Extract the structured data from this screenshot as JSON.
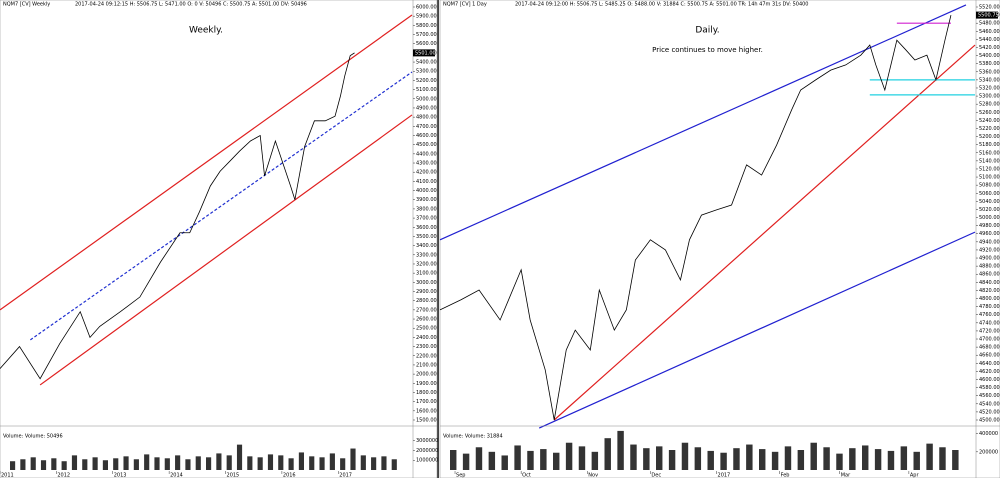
{
  "chart_data": [
    {
      "type": "line",
      "header": "NQM7 [CV]  Weekly",
      "header_info": "2017-04-24 09:12:15 H: 5506.75 L: 5471.00 O: 0 V: 50496 C: 5500.75 A: 5501.00 DV: 50496",
      "title": "Weekly.",
      "last_label": "5501.00",
      "color": "#000000",
      "x": [
        0,
        18,
        37,
        55,
        74,
        83,
        92,
        111,
        129,
        148,
        166,
        175,
        184,
        194,
        203,
        212,
        221,
        231,
        240,
        244,
        254,
        268,
        272,
        281,
        290,
        300,
        309,
        314,
        318,
        323,
        327
      ],
      "values": [
        2060,
        2300,
        1950,
        2330,
        2680,
        2400,
        2520,
        2680,
        2840,
        3220,
        3540,
        3540,
        3770,
        4050,
        4210,
        4320,
        4430,
        4540,
        4600,
        4160,
        4540,
        4050,
        3900,
        4480,
        4760,
        4760,
        4810,
        5030,
        5250,
        5470,
        5500
      ],
      "xlim": [
        0,
        380
      ],
      "ylim": [
        1500,
        6000
      ],
      "xticks": [
        {
          "value": 0,
          "label": "2011"
        },
        {
          "value": 52,
          "label": "2012"
        },
        {
          "value": 104,
          "label": "2013"
        },
        {
          "value": 156,
          "label": "2014"
        },
        {
          "value": 208,
          "label": "2015"
        },
        {
          "value": 260,
          "label": "2016"
        },
        {
          "value": 312,
          "label": "2017"
        }
      ],
      "yticks": [
        {
          "value": 1500,
          "label": "1500.00"
        },
        {
          "value": 1600,
          "label": "1600.00"
        },
        {
          "value": 1700,
          "label": "1700.00"
        },
        {
          "value": 1800,
          "label": "1800.00"
        },
        {
          "value": 1900,
          "label": "1900.00"
        },
        {
          "value": 2000,
          "label": "2000.00"
        },
        {
          "value": 2100,
          "label": "2100.00"
        },
        {
          "value": 2200,
          "label": "2200.00"
        },
        {
          "value": 2300,
          "label": "2300.00"
        },
        {
          "value": 2400,
          "label": "2400.00"
        },
        {
          "value": 2500,
          "label": "2500.00"
        },
        {
          "value": 2600,
          "label": "2600.00"
        },
        {
          "value": 2700,
          "label": "2700.00"
        },
        {
          "value": 2800,
          "label": "2800.00"
        },
        {
          "value": 2900,
          "label": "2900.00"
        },
        {
          "value": 3000,
          "label": "3000.00"
        },
        {
          "value": 3100,
          "label": "3100.00"
        },
        {
          "value": 3200,
          "label": "3200.00"
        },
        {
          "value": 3300,
          "label": "3300.00"
        },
        {
          "value": 3400,
          "label": "3400.00"
        },
        {
          "value": 3500,
          "label": "3500.00"
        },
        {
          "value": 3600,
          "label": "3600.00"
        },
        {
          "value": 3700,
          "label": "3700.00"
        },
        {
          "value": 3800,
          "label": "3800.00"
        },
        {
          "value": 3900,
          "label": "3900.00"
        },
        {
          "value": 4000,
          "label": "4000.00"
        },
        {
          "value": 4100,
          "label": "4100.00"
        },
        {
          "value": 4200,
          "label": "4200.00"
        },
        {
          "value": 4300,
          "label": "4300.00"
        },
        {
          "value": 4400,
          "label": "4400.00"
        },
        {
          "value": 4500,
          "label": "4500.00"
        },
        {
          "value": 4600,
          "label": "4600.00"
        },
        {
          "value": 4700,
          "label": "4700.00"
        },
        {
          "value": 4800,
          "label": "4800.00"
        },
        {
          "value": 4900,
          "label": "4900.00"
        },
        {
          "value": 5000,
          "label": "5000.00"
        },
        {
          "value": 5100,
          "label": "5100.00"
        },
        {
          "value": 5200,
          "label": "5200.00"
        },
        {
          "value": 5300,
          "label": "5300.00"
        },
        {
          "value": 5400,
          "label": "5400.00"
        },
        {
          "value": 5500,
          "label": "5500.00"
        },
        {
          "value": 5600,
          "label": "5600.00"
        },
        {
          "value": 5700,
          "label": "5700.00"
        },
        {
          "value": 5800,
          "label": "5800.00"
        },
        {
          "value": 5900,
          "label": "5900.00"
        },
        {
          "value": 6000,
          "label": "6000.00"
        }
      ],
      "lines": [
        {
          "color": "#e02020",
          "dash": false,
          "x": [
            0,
            380
          ],
          "values": [
            2700,
            5913
          ]
        },
        {
          "color": "#e02020",
          "dash": false,
          "x": [
            37,
            380
          ],
          "values": [
            1882,
            4824
          ]
        },
        {
          "color": "#2030d0",
          "dash": true,
          "x": [
            28,
            380
          ],
          "values": [
            2373,
            5292
          ]
        }
      ],
      "volume": {
        "label": "Volume: Volume: 50496",
        "color": "#333333",
        "ylim": [
          0,
          4100000
        ],
        "yticks": [
          1000000,
          2000000,
          3000000
        ],
        "values": [
          900000,
          1100000,
          1300000,
          1000000,
          1200000,
          900000,
          1500000,
          1100000,
          1300000,
          1000000,
          1200000,
          1400000,
          1100000,
          1600000,
          1300000,
          1200000,
          1500000,
          1100000,
          1400000,
          1300000,
          1700000,
          1500000,
          2600000,
          1400000,
          1300000,
          1600000,
          1500000,
          1200000,
          1800000,
          1400000,
          1300000,
          1700000,
          1200000,
          2200000,
          1500000,
          1300000,
          1400000,
          1100000
        ]
      }
    },
    {
      "type": "line",
      "header": "NQM7 [CV]  1 Day",
      "header_info": "2017-04-24 09:12:00 H: 5506.75 L: 5485.25 O: 5488.00 V: 31884 C: 5500.75 A: 5501.00 TR: 14h 47m 31s DV: 50400",
      "title": "Daily.",
      "annotation": "Price continues to move higher.",
      "last_label": "5500.75",
      "color": "#000000",
      "x": [
        0,
        7,
        13,
        20,
        27,
        30,
        35,
        38,
        42,
        45,
        50,
        53,
        58,
        62,
        65,
        70,
        75,
        80,
        83,
        87,
        92,
        97,
        102,
        107,
        112,
        117,
        120,
        125,
        130,
        135,
        140,
        143,
        145,
        148,
        152,
        155,
        158,
        162,
        165,
        168,
        170
      ],
      "values": [
        4772,
        4797,
        4821,
        4747,
        4871,
        4747,
        4624,
        4500,
        4673,
        4722,
        4673,
        4821,
        4722,
        4772,
        4895,
        4945,
        4920,
        4846,
        4945,
        5006,
        5019,
        5031,
        5130,
        5105,
        5179,
        5266,
        5315,
        5340,
        5364,
        5377,
        5401,
        5426,
        5377,
        5315,
        5438,
        5414,
        5389,
        5401,
        5340,
        5438,
        5500
      ],
      "xlim": [
        0,
        178
      ],
      "ylim": [
        4500,
        5520
      ],
      "xticks": [
        {
          "value": 5,
          "label": "Sep"
        },
        {
          "value": 27,
          "label": "Oct"
        },
        {
          "value": 49,
          "label": "Nov"
        },
        {
          "value": 70,
          "label": "Dec"
        },
        {
          "value": 92,
          "label": "2017"
        },
        {
          "value": 113,
          "label": "Feb"
        },
        {
          "value": 133,
          "label": "Mar"
        },
        {
          "value": 156,
          "label": "Apr"
        }
      ],
      "yticks": [
        {
          "value": 4500,
          "label": "4500.00"
        },
        {
          "value": 4520,
          "label": "4520.00"
        },
        {
          "value": 4540,
          "label": "4540.00"
        },
        {
          "value": 4560,
          "label": "4560.00"
        },
        {
          "value": 4580,
          "label": "4580.00"
        },
        {
          "value": 4600,
          "label": "4600.00"
        },
        {
          "value": 4620,
          "label": "4620.00"
        },
        {
          "value": 4640,
          "label": "4640.00"
        },
        {
          "value": 4660,
          "label": "4660.00"
        },
        {
          "value": 4680,
          "label": "4680.00"
        },
        {
          "value": 4700,
          "label": "4700.00"
        },
        {
          "value": 4720,
          "label": "4720.00"
        },
        {
          "value": 4740,
          "label": "4740.00"
        },
        {
          "value": 4760,
          "label": "4760.00"
        },
        {
          "value": 4780,
          "label": "4780.00"
        },
        {
          "value": 4800,
          "label": "4800.00"
        },
        {
          "value": 4820,
          "label": "4820.00"
        },
        {
          "value": 4840,
          "label": "4840.00"
        },
        {
          "value": 4860,
          "label": "4860.00"
        },
        {
          "value": 4880,
          "label": "4880.00"
        },
        {
          "value": 4900,
          "label": "4900.00"
        },
        {
          "value": 4920,
          "label": "4920.00"
        },
        {
          "value": 4940,
          "label": "4940.00"
        },
        {
          "value": 4960,
          "label": "4960.00"
        },
        {
          "value": 4980,
          "label": "4980.00"
        },
        {
          "value": 5000,
          "label": "5000.00"
        },
        {
          "value": 5020,
          "label": "5020.00"
        },
        {
          "value": 5040,
          "label": "5040.00"
        },
        {
          "value": 5060,
          "label": "5060.00"
        },
        {
          "value": 5080,
          "label": "5080.00"
        },
        {
          "value": 5100,
          "label": "5100.00"
        },
        {
          "value": 5120,
          "label": "5120.00"
        },
        {
          "value": 5140,
          "label": "5140.00"
        },
        {
          "value": 5160,
          "label": "5160.00"
        },
        {
          "value": 5180,
          "label": "5180.00"
        },
        {
          "value": 5200,
          "label": "5200.00"
        },
        {
          "value": 5220,
          "label": "5220.00"
        },
        {
          "value": 5240,
          "label": "5240.00"
        },
        {
          "value": 5260,
          "label": "5260.00"
        },
        {
          "value": 5280,
          "label": "5280.00"
        },
        {
          "value": 5300,
          "label": "5300.00"
        },
        {
          "value": 5320,
          "label": "5320.00"
        },
        {
          "value": 5340,
          "label": "5340.00"
        },
        {
          "value": 5360,
          "label": "5360.00"
        },
        {
          "value": 5380,
          "label": "5380.00"
        },
        {
          "value": 5400,
          "label": "5400.00"
        },
        {
          "value": 5420,
          "label": "5420.00"
        },
        {
          "value": 5440,
          "label": "5440.00"
        },
        {
          "value": 5460,
          "label": "5460.00"
        },
        {
          "value": 5480,
          "label": "5480.00"
        },
        {
          "value": 5500,
          "label": "5500.00"
        },
        {
          "value": 5520,
          "label": "5520.00"
        }
      ],
      "lines": [
        {
          "color": "#2020d0",
          "dash": false,
          "x": [
            0,
            175
          ],
          "values": [
            4945,
            5525
          ]
        },
        {
          "color": "#e02020",
          "dash": false,
          "x": [
            38,
            178
          ],
          "values": [
            4500,
            5426
          ]
        },
        {
          "color": "#2020d0",
          "dash": false,
          "x": [
            33,
            178
          ],
          "values": [
            4480,
            4964
          ]
        },
        {
          "color": "#d020d0",
          "dash": false,
          "x": [
            152,
            170
          ],
          "values": [
            5480,
            5480
          ]
        },
        {
          "color": "#20d0e0",
          "dash": false,
          "x": [
            143,
            178
          ],
          "values": [
            5340,
            5340
          ]
        },
        {
          "color": "#20d0e0",
          "dash": false,
          "x": [
            143,
            178
          ],
          "values": [
            5303,
            5303
          ]
        }
      ],
      "volume": {
        "label": "Volume: Volume: 31884",
        "color": "#333333",
        "ylim": [
          0,
          440000
        ],
        "yticks": [
          200000,
          400000
        ],
        "values": [
          220000,
          180000,
          250000,
          200000,
          160000,
          270000,
          210000,
          230000,
          190000,
          300000,
          260000,
          200000,
          350000,
          430000,
          280000,
          240000,
          260000,
          220000,
          300000,
          250000,
          210000,
          190000,
          240000,
          280000,
          230000,
          200000,
          260000,
          220000,
          300000,
          250000,
          180000,
          240000,
          270000,
          230000,
          210000,
          260000,
          200000,
          290000,
          250000,
          220000
        ]
      }
    }
  ]
}
